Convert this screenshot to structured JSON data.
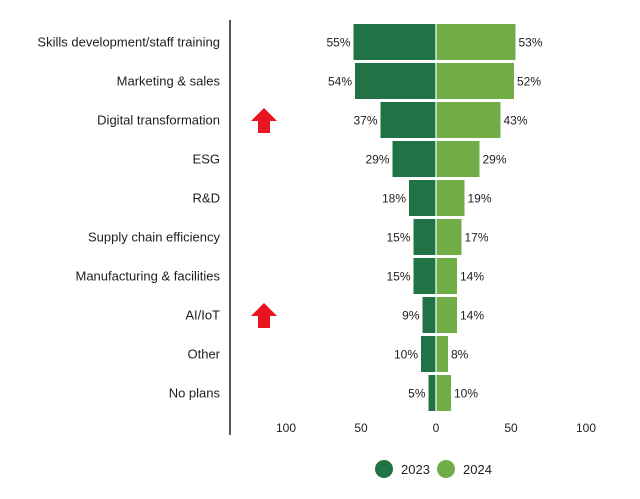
{
  "chart_data": {
    "type": "bar",
    "orientation": "horizontal-diverging",
    "categories": [
      "Skills development/staff training",
      "Marketing & sales",
      "Digital transformation",
      "ESG",
      "R&D",
      "Supply chain efficiency",
      "Manufacturing & facilities",
      "AI/IoT",
      "Other",
      "No plans"
    ],
    "series": [
      {
        "name": "2023",
        "color": "#217346",
        "side": "left",
        "values": [
          55,
          54,
          37,
          29,
          18,
          15,
          15,
          9,
          10,
          5
        ],
        "labels": [
          "55%",
          "54%",
          "37%",
          "29%",
          "18%",
          "15%",
          "15%",
          "9%",
          "10%",
          "5%"
        ]
      },
      {
        "name": "2024",
        "color": "#70ad47",
        "side": "right",
        "values": [
          53,
          52,
          43,
          29,
          19,
          17,
          14,
          14,
          8,
          10
        ],
        "labels": [
          "53%",
          "52%",
          "43%",
          "29%",
          "19%",
          "17%",
          "14%",
          "14%",
          "8%",
          "10%"
        ]
      }
    ],
    "x_ticks": [
      {
        "value": -100,
        "label": "100"
      },
      {
        "value": -50,
        "label": "50"
      },
      {
        "value": 0,
        "label": "0"
      },
      {
        "value": 50,
        "label": "50"
      },
      {
        "value": 100,
        "label": "100"
      }
    ],
    "xlim": [
      -100,
      100
    ],
    "grid": false,
    "legend_position": "bottom-right",
    "markers": [
      {
        "type": "up-arrow-icon",
        "category": "Digital transformation",
        "color": "#e8141f"
      },
      {
        "type": "up-arrow-icon",
        "category": "AI/IoT",
        "color": "#e8141f"
      }
    ],
    "title": "",
    "xlabel": "",
    "ylabel": ""
  }
}
